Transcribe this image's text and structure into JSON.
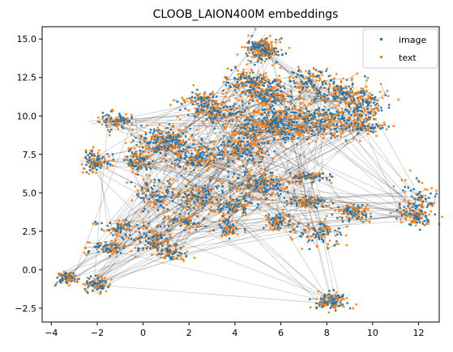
{
  "chart_data": {
    "type": "scatter",
    "title": "CLOOB_LAION400M embeddings",
    "xlabel": "",
    "ylabel": "",
    "xlim": [
      -4.4,
      12.9
    ],
    "ylim": [
      -3.4,
      15.8
    ],
    "xticks": [
      -4,
      -2,
      0,
      2,
      4,
      6,
      8,
      10,
      12
    ],
    "yticks": [
      -2.5,
      0.0,
      2.5,
      5.0,
      7.5,
      10.0,
      12.5,
      15.0
    ],
    "xtick_labels": [
      "−4",
      "−2",
      "0",
      "2",
      "4",
      "6",
      "8",
      "10",
      "12"
    ],
    "ytick_labels": [
      "−2.5",
      "0.0",
      "2.5",
      "5.0",
      "7.5",
      "10.0",
      "12.5",
      "15.0"
    ],
    "legend_position": "top-right",
    "grid": false,
    "series": [
      {
        "name": "image",
        "color": "#1f77b4",
        "marker": "square",
        "size": 2
      },
      {
        "name": "text",
        "color": "#ff7f0e",
        "marker": "square",
        "size": 2
      }
    ],
    "connector_lines": {
      "color": "#000000",
      "opacity": 0.2
    },
    "clusters": [
      {
        "x": 5.2,
        "y": 14.3,
        "sx": 0.35,
        "sy": 0.35,
        "n": 120
      },
      {
        "x": 4.5,
        "y": 12.2,
        "sx": 0.5,
        "sy": 0.35,
        "n": 90
      },
      {
        "x": 7.3,
        "y": 12.3,
        "sx": 0.5,
        "sy": 0.35,
        "n": 60
      },
      {
        "x": 8.5,
        "y": 11.5,
        "sx": 0.6,
        "sy": 0.35,
        "n": 90
      },
      {
        "x": 5.5,
        "y": 11.4,
        "sx": 0.5,
        "sy": 0.45,
        "n": 110
      },
      {
        "x": 2.6,
        "y": 10.8,
        "sx": 0.45,
        "sy": 0.35,
        "n": 70
      },
      {
        "x": 3.4,
        "y": 10.2,
        "sx": 0.4,
        "sy": 0.35,
        "n": 60
      },
      {
        "x": 5.8,
        "y": 9.4,
        "sx": 0.9,
        "sy": 0.55,
        "n": 220
      },
      {
        "x": 7.7,
        "y": 9.7,
        "sx": 0.8,
        "sy": 0.55,
        "n": 140
      },
      {
        "x": 9.5,
        "y": 10.5,
        "sx": 0.5,
        "sy": 0.6,
        "n": 100
      },
      {
        "x": 9.6,
        "y": 9.3,
        "sx": 0.45,
        "sy": 0.15,
        "n": 40
      },
      {
        "x": 1.0,
        "y": 8.3,
        "sx": 0.6,
        "sy": 0.45,
        "n": 140
      },
      {
        "x": -1.1,
        "y": 9.6,
        "sx": 0.4,
        "sy": 0.25,
        "n": 50
      },
      {
        "x": -2.0,
        "y": 7.0,
        "sx": 0.3,
        "sy": 0.3,
        "n": 60
      },
      {
        "x": -0.2,
        "y": 7.0,
        "sx": 0.3,
        "sy": 0.35,
        "n": 60
      },
      {
        "x": 2.3,
        "y": 7.2,
        "sx": 0.6,
        "sy": 0.4,
        "n": 90
      },
      {
        "x": 4.3,
        "y": 7.8,
        "sx": 0.6,
        "sy": 0.5,
        "n": 100
      },
      {
        "x": 7.3,
        "y": 6.0,
        "sx": 0.4,
        "sy": 0.15,
        "n": 45
      },
      {
        "x": 5.2,
        "y": 5.5,
        "sx": 0.6,
        "sy": 0.5,
        "n": 110
      },
      {
        "x": 2.5,
        "y": 4.8,
        "sx": 0.6,
        "sy": 0.45,
        "n": 80
      },
      {
        "x": 0.5,
        "y": 4.8,
        "sx": 0.5,
        "sy": 0.5,
        "n": 60
      },
      {
        "x": 3.8,
        "y": 4.2,
        "sx": 0.4,
        "sy": 0.3,
        "n": 60
      },
      {
        "x": 7.3,
        "y": 4.4,
        "sx": 0.5,
        "sy": 0.2,
        "n": 50
      },
      {
        "x": 9.1,
        "y": 3.7,
        "sx": 0.35,
        "sy": 0.35,
        "n": 60
      },
      {
        "x": 11.8,
        "y": 4.2,
        "sx": 0.4,
        "sy": 0.6,
        "n": 70
      },
      {
        "x": 12.0,
        "y": 3.4,
        "sx": 0.25,
        "sy": 0.25,
        "n": 40
      },
      {
        "x": 5.9,
        "y": 3.1,
        "sx": 0.3,
        "sy": 0.3,
        "n": 50
      },
      {
        "x": 7.7,
        "y": 2.4,
        "sx": 0.45,
        "sy": 0.4,
        "n": 60
      },
      {
        "x": 3.7,
        "y": 2.7,
        "sx": 0.25,
        "sy": 0.3,
        "n": 40
      },
      {
        "x": 1.8,
        "y": 3.0,
        "sx": 0.4,
        "sy": 0.3,
        "n": 40
      },
      {
        "x": -1.1,
        "y": 2.7,
        "sx": 0.35,
        "sy": 0.3,
        "n": 40
      },
      {
        "x": 0.4,
        "y": 2.0,
        "sx": 0.45,
        "sy": 0.4,
        "n": 70
      },
      {
        "x": -1.4,
        "y": 1.4,
        "sx": 0.4,
        "sy": 0.2,
        "n": 50
      },
      {
        "x": 1.2,
        "y": 1.2,
        "sx": 0.3,
        "sy": 0.25,
        "n": 40
      },
      {
        "x": -3.3,
        "y": -0.5,
        "sx": 0.2,
        "sy": 0.2,
        "n": 50
      },
      {
        "x": -2.0,
        "y": -0.9,
        "sx": 0.25,
        "sy": 0.25,
        "n": 50
      },
      {
        "x": 8.2,
        "y": -2.1,
        "sx": 0.3,
        "sy": 0.25,
        "n": 70
      }
    ]
  },
  "legend": {
    "image_label": "image",
    "text_label": "text"
  }
}
